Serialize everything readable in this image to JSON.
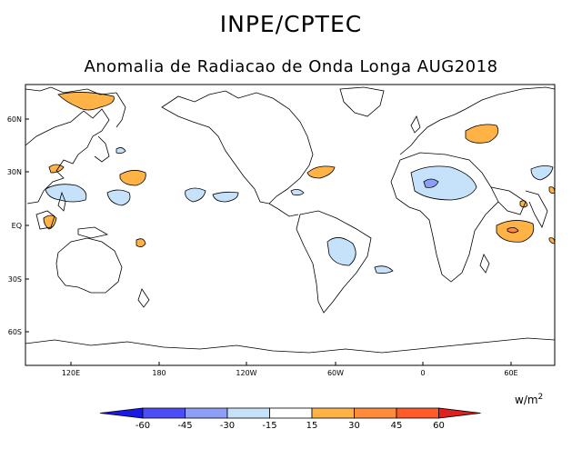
{
  "title": "INPE/CPTEC",
  "subtitle": "Anomalia de Radiacao de Onda Longa AUG2018",
  "lat_labels": [
    "60N",
    "30N",
    "EQ",
    "30S",
    "60S"
  ],
  "lon_labels": [
    "120E",
    "180",
    "120W",
    "60W",
    "0",
    "60E"
  ],
  "units": {
    "base": "w/m",
    "exp": "2"
  },
  "colorbar": {
    "ticks": [
      "-60",
      "-45",
      "-30",
      "-15",
      "15",
      "30",
      "45",
      "60"
    ],
    "colors": [
      "#1a1ae6",
      "#4d4df5",
      "#8c9ef5",
      "#c6e2fa",
      "#ffffff",
      "#ffb347",
      "#ff8c3a",
      "#ff5a2a",
      "#e01f1f"
    ]
  }
}
